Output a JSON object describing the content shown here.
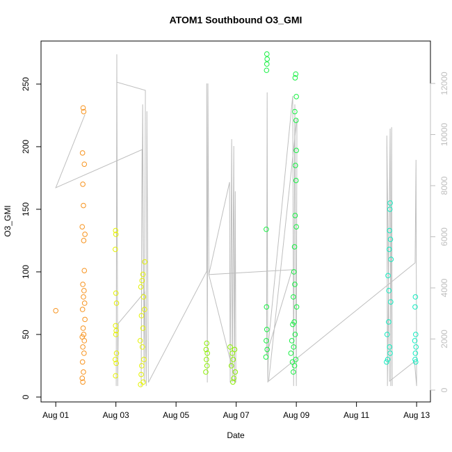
{
  "chart_data": {
    "type": "scatter",
    "title": "ATOM1 Southbound O3_GMI",
    "xlabel": "Date",
    "ylabel": "O3_GMI",
    "xlim": [
      -0.49,
      12.46
    ],
    "ylim": [
      -3.9,
      284.4
    ],
    "y2lim": [
      -463,
      13660
    ],
    "xticks": [
      {
        "value": 0,
        "label": "Aug 01"
      },
      {
        "value": 2,
        "label": "Aug 03"
      },
      {
        "value": 4,
        "label": "Aug 05"
      },
      {
        "value": 6,
        "label": "Aug 07"
      },
      {
        "value": 8,
        "label": "Aug 09"
      },
      {
        "value": 10,
        "label": "Aug 11"
      },
      {
        "value": 12,
        "label": "Aug 13"
      }
    ],
    "yticks": [
      0,
      50,
      100,
      150,
      200,
      250
    ],
    "y2ticks": [
      0,
      2000,
      4000,
      6000,
      8000,
      10000,
      12000
    ],
    "y2color": "#bebebe",
    "series": [
      {
        "type": "line",
        "axis": "y2",
        "color": "#bebebe",
        "x": [
          0.97,
          0,
          2.87,
          2.84,
          2.89,
          2.94,
          2.98,
          2.98,
          2.03,
          2.01,
          2.03,
          2.06,
          2.08,
          2.96,
          3.01,
          3.03,
          3.08,
          5.02,
          5.02,
          5.04,
          5.06,
          5.09,
          5.78,
          5.8,
          5.85,
          5.87,
          5.92,
          5.94,
          5.97,
          5.99,
          5.09,
          7.86,
          7.01,
          7.03,
          7.05,
          7.08,
          7.88,
          7.91,
          7.95,
          8.0,
          8.02,
          7.08,
          11.95,
          11.98,
          12.0,
          11.93,
          11.1,
          11.01,
          11.03,
          11.12,
          11.14,
          11.17,
          11.19
        ],
        "values": [
          10780,
          7920,
          9410,
          160,
          11180,
          300,
          11370,
          11730,
          12050,
          160,
          13140,
          160,
          2610,
          3840,
          160,
          10910,
          300,
          4650,
          12000,
          300,
          12000,
          4520,
          8140,
          300,
          9820,
          300,
          9550,
          300,
          7780,
          300,
          4520,
          4710,
          1390,
          11650,
          300,
          1930,
          11510,
          160,
          11180,
          160,
          10640,
          350,
          4980,
          9010,
          160,
          1120,
          350,
          9960,
          160,
          10230,
          160,
          10290,
          160
        ]
      },
      {
        "color": "#f7931e",
        "x": [
          0,
          0.91,
          0.93,
          0.89,
          0.95,
          0.9,
          0.92,
          0.88,
          0.97,
          0.93,
          0.95,
          0.9,
          0.94,
          0.92,
          0.96,
          0.89,
          0.97,
          0.91,
          0.93,
          0.88,
          0.95,
          0.9,
          0.94,
          0.89,
          0.92,
          0.88,
          0.9
        ],
        "values": [
          69,
          231,
          228,
          195,
          186,
          170,
          153,
          136,
          130,
          125,
          101,
          90,
          85,
          80,
          75,
          70,
          62,
          55,
          50,
          48,
          45,
          40,
          35,
          28,
          20,
          15,
          12
        ]
      },
      {
        "color": "#e5f200",
        "x": [
          1.99,
          2.0,
          1.98,
          2.0,
          2.02,
          1.99,
          2.01,
          2.0,
          2.02,
          1.98,
          2.01,
          1.99,
          2.96,
          2.9,
          2.87,
          2.83,
          2.92,
          2.95,
          2.85,
          2.9,
          2.81,
          2.88,
          2.93,
          2.86,
          2.84,
          2.91,
          2.82
        ],
        "values": [
          133,
          130,
          118,
          83,
          75,
          57,
          53,
          50,
          35,
          30,
          27,
          17,
          108,
          98,
          93,
          88,
          80,
          70,
          65,
          55,
          45,
          40,
          30,
          25,
          18,
          12,
          10
        ]
      },
      {
        "color": "#8cf000",
        "x": [
          5.02,
          5.0,
          5.04,
          5.01,
          5.03,
          4.99,
          5.8,
          5.95,
          5.87,
          5.9,
          5.84,
          5.97,
          5.92,
          5.89
        ],
        "values": [
          43,
          38,
          35,
          30,
          25,
          20,
          40,
          38,
          35,
          30,
          25,
          20,
          15,
          12
        ]
      },
      {
        "color": "#14f040",
        "x": [
          7.02,
          7.03,
          7.02,
          7.01,
          7.0,
          7.01,
          7.02,
          7.0,
          7.03,
          6.99,
          7.98,
          7.96,
          8.0,
          7.95,
          7.99,
          8.0,
          7.97,
          7.99,
          7.96,
          8.0,
          7.94,
          7.92,
          7.95,
          7.9,
          8.01,
          7.93,
          7.88,
          7.96,
          7.85,
          7.91,
          7.82,
          7.98,
          7.87,
          7.94,
          7.9
        ],
        "values": [
          274,
          270,
          266,
          261,
          134,
          72,
          54,
          45,
          38,
          32,
          258,
          255,
          240,
          228,
          221,
          197,
          185,
          173,
          145,
          136,
          120,
          100,
          90,
          80,
          72,
          60,
          58,
          50,
          45,
          40,
          35,
          30,
          28,
          25,
          20
        ]
      },
      {
        "color": "#10ecc0",
        "x": [
          11.12,
          11.11,
          11.1,
          11.13,
          11.09,
          11.15,
          11.05,
          11.08,
          11.14,
          11.07,
          11.02,
          11.1,
          11.12,
          11.04,
          11.0,
          11.96,
          11.95,
          11.97,
          11.94,
          11.98,
          11.96,
          11.95,
          11.97
        ],
        "values": [
          155,
          150,
          133,
          126,
          118,
          110,
          97,
          85,
          76,
          60,
          50,
          40,
          35,
          30,
          28,
          80,
          72,
          50,
          45,
          40,
          35,
          30,
          28
        ]
      }
    ]
  }
}
